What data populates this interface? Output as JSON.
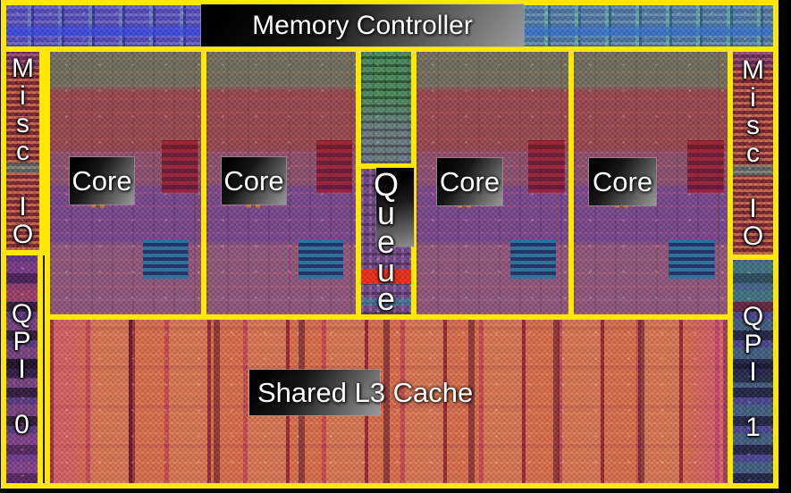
{
  "colors": {
    "outline": "#ffe800",
    "label_text": "#ffffff",
    "background": "#000000"
  },
  "regions": {
    "memory_controller": {
      "label": "Memory Controller"
    },
    "core": {
      "label": "Core",
      "count": 4
    },
    "queue": {
      "name": "Queue",
      "stacked_label": "Q\nu\ne\nu\ne"
    },
    "shared_l3_cache": {
      "label": "Shared L3 Cache"
    },
    "misc_io_left": {
      "name": "Misc IO",
      "stacked_label": "M\ni\ns\nc\n \nI\nO"
    },
    "misc_io_right": {
      "name": "Misc IO",
      "stacked_label": "M\ni\ns\nc\n \nI\nO"
    },
    "qpi_0": {
      "name": "QPI 0",
      "stacked_label": "Q\nP\nI\n \n0"
    },
    "qpi_1": {
      "name": "QPI 1",
      "stacked_label": "Q\nP\nI\n \n1"
    }
  }
}
